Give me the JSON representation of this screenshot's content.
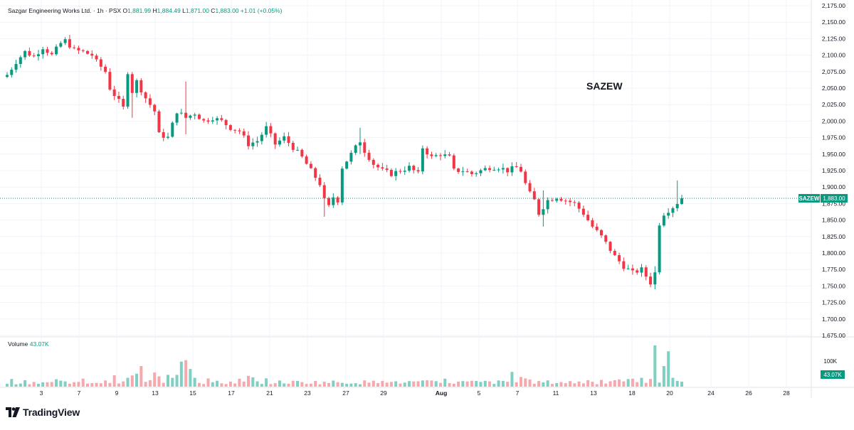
{
  "header": {
    "title": "Sazgar Engineering  Works Ltd. · 1h · PSX",
    "ohlc": [
      {
        "label": "O",
        "value": "1,881.99"
      },
      {
        "label": "H",
        "value": "1,884.49"
      },
      {
        "label": "L",
        "value": "1,871.00"
      },
      {
        "label": "C",
        "value": "1,883.00"
      }
    ],
    "change": "+1.01 (+0.05%)"
  },
  "watermark": "SAZEW",
  "volume_legend": {
    "label": "Volume",
    "value": "43.07K"
  },
  "brand": {
    "name": "TradingView"
  },
  "price_tag": {
    "symbol": "SAZEW",
    "value": "1,883.00"
  },
  "volume_tag": "43.07K",
  "volume_axis_label": "100K",
  "colors": {
    "up": "#089981",
    "down": "#f23645",
    "up_vol": "#7fcfc2",
    "down_vol": "#f7a8ad",
    "grid": "#f0f3fa"
  },
  "chart_data": {
    "type": "candlestick",
    "symbol": "SAZEW",
    "interval": "1h",
    "y_ticks": [
      "2,175.00",
      "2,150.00",
      "2,125.00",
      "2,100.00",
      "2,075.00",
      "2,050.00",
      "2,025.00",
      "2,000.00",
      "1,975.00",
      "1,950.00",
      "1,925.00",
      "1,900.00",
      "1,875.00",
      "1,850.00",
      "1,825.00",
      "1,800.00",
      "1,775.00",
      "1,750.00",
      "1,725.00",
      "1,700.00",
      "1,675.00"
    ],
    "ylim": [
      1675,
      2175
    ],
    "x_ticks": [
      "3",
      "7",
      "9",
      "13",
      "15",
      "17",
      "21",
      "23",
      "27",
      "29",
      "Aug",
      "5",
      "7",
      "11",
      "13",
      "18",
      "20",
      "24",
      "26",
      "28"
    ],
    "last_price": 1883,
    "price_path": [
      [
        0,
        2070
      ],
      [
        2,
        2090
      ],
      [
        4,
        2105
      ],
      [
        6,
        2098
      ],
      [
        8,
        2112
      ],
      [
        10,
        2100
      ],
      [
        12,
        2118
      ],
      [
        13,
        2122
      ],
      [
        15,
        2108
      ],
      [
        17,
        2105
      ],
      [
        19,
        2100
      ],
      [
        20,
        2090
      ],
      [
        22,
        2075
      ],
      [
        23,
        2050
      ],
      [
        25,
        2030
      ],
      [
        26,
        2020
      ],
      [
        27,
        2075
      ],
      [
        28,
        2045
      ],
      [
        29,
        2060
      ],
      [
        31,
        2035
      ],
      [
        33,
        2015
      ],
      [
        34,
        1980
      ],
      [
        36,
        1975
      ],
      [
        38,
        2015
      ],
      [
        40,
        2005
      ],
      [
        42,
        2012
      ],
      [
        44,
        2000
      ],
      [
        46,
        2005
      ],
      [
        48,
        2000
      ],
      [
        50,
        1990
      ],
      [
        52,
        1985
      ],
      [
        54,
        1965
      ],
      [
        56,
        1970
      ],
      [
        58,
        1990
      ],
      [
        60,
        1965
      ],
      [
        62,
        1975
      ],
      [
        64,
        1960
      ],
      [
        66,
        1945
      ],
      [
        68,
        1925
      ],
      [
        70,
        1905
      ],
      [
        71,
        1880
      ],
      [
        72,
        1870
      ],
      [
        73,
        1885
      ],
      [
        74,
        1880
      ],
      [
        75,
        1930
      ],
      [
        77,
        1950
      ],
      [
        78,
        1960
      ],
      [
        79,
        1970
      ],
      [
        80,
        1955
      ],
      [
        82,
        1935
      ],
      [
        84,
        1925
      ],
      [
        86,
        1920
      ],
      [
        88,
        1925
      ],
      [
        90,
        1930
      ],
      [
        92,
        1920
      ],
      [
        93,
        1960
      ],
      [
        95,
        1945
      ],
      [
        97,
        1950
      ],
      [
        99,
        1945
      ],
      [
        100,
        1925
      ],
      [
        102,
        1925
      ],
      [
        104,
        1920
      ],
      [
        106,
        1925
      ],
      [
        108,
        1930
      ],
      [
        110,
        1930
      ],
      [
        112,
        1925
      ],
      [
        114,
        1930
      ],
      [
        115,
        1925
      ],
      [
        116,
        1905
      ],
      [
        117,
        1890
      ],
      [
        118,
        1880
      ],
      [
        119,
        1860
      ],
      [
        121,
        1880
      ],
      [
        123,
        1885
      ],
      [
        125,
        1880
      ],
      [
        127,
        1875
      ],
      [
        129,
        1860
      ],
      [
        131,
        1840
      ],
      [
        133,
        1825
      ],
      [
        135,
        1805
      ],
      [
        136,
        1795
      ],
      [
        138,
        1780
      ],
      [
        140,
        1770
      ],
      [
        142,
        1775
      ],
      [
        144,
        1755
      ],
      [
        145,
        1770
      ],
      [
        146,
        1845
      ],
      [
        147,
        1860
      ],
      [
        149,
        1870
      ],
      [
        151,
        1883
      ]
    ],
    "total_candles": 152,
    "volume_max": 140
  }
}
